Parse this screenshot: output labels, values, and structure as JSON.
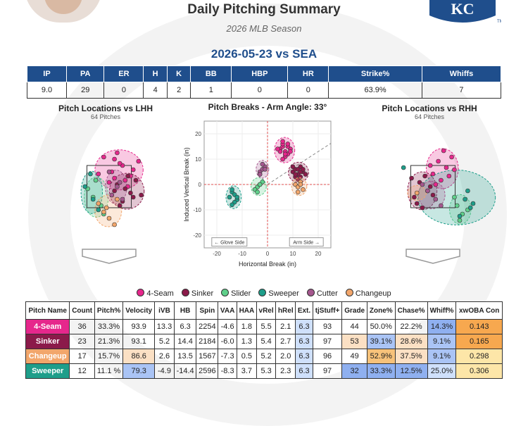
{
  "header": {
    "title": "Daily Pitching Summary",
    "subtitle": "2026 MLB Season",
    "game": "2026-05-23 vs SEA"
  },
  "summary": {
    "headers": [
      "IP",
      "PA",
      "ER",
      "H",
      "K",
      "BB",
      "HBP",
      "HR",
      "Strike%",
      "Whiffs"
    ],
    "values": [
      "9.0",
      "29",
      "0",
      "4",
      "2",
      "1",
      "0",
      "0",
      "63.9%",
      "7"
    ]
  },
  "lhh": {
    "title": "Pitch Locations vs LHH",
    "sub": "64 Pitches"
  },
  "rhh": {
    "title": "Pitch Locations vs RHH",
    "sub": "64 Pitches"
  },
  "colors": {
    "4-Seam": "#e6278c",
    "Sinker": "#8b1a4a",
    "Slider": "#5fd08a",
    "Sweeper": "#1e9e8a",
    "Cutter": "#a5578e",
    "Changeup": "#f2a66b"
  },
  "chart_data": [
    {
      "type": "scatter",
      "title": "Pitch Breaks - Arm Angle: 33°",
      "xlabel": "Horizontal Break (in)",
      "ylabel": "Induced Vertical Break (in)",
      "xlim": [
        -25,
        25
      ],
      "ylim": [
        -25,
        25
      ],
      "xticks": [
        -20,
        -10,
        0,
        10,
        20
      ],
      "yticks": [
        -20,
        -10,
        0,
        10,
        20
      ],
      "arm_angle_deg": 33,
      "annotations": [
        "← Glove Side",
        "Arm Side →"
      ],
      "series": [
        {
          "name": "4-Seam",
          "x": [
            5,
            6,
            7,
            8,
            9,
            6,
            7,
            8,
            5,
            6,
            7,
            9,
            8,
            4,
            6,
            7
          ],
          "y": [
            14,
            15,
            13,
            12,
            14,
            16,
            11,
            15,
            13,
            10,
            12,
            13,
            16,
            14,
            17,
            12
          ]
        },
        {
          "name": "Sinker",
          "x": [
            10,
            11,
            12,
            13,
            14,
            11,
            12,
            13,
            15,
            10,
            14,
            12,
            11,
            13
          ],
          "y": [
            5,
            6,
            4,
            7,
            5,
            3,
            6,
            5,
            4,
            7,
            6,
            2,
            4,
            3
          ]
        },
        {
          "name": "Slider",
          "x": [
            -4,
            -3,
            -2,
            -5,
            -4,
            -3
          ],
          "y": [
            -1,
            0,
            1,
            -2,
            -3,
            0
          ]
        },
        {
          "name": "Sweeper",
          "x": [
            -14,
            -13,
            -12,
            -15,
            -14,
            -13,
            -12,
            -14
          ],
          "y": [
            -3,
            -4,
            -6,
            -5,
            -2,
            -7,
            -5,
            -8
          ]
        },
        {
          "name": "Cutter",
          "x": [
            -3,
            -2,
            -1,
            -2,
            -1,
            -3
          ],
          "y": [
            5,
            6,
            7,
            8,
            6,
            4
          ]
        },
        {
          "name": "Changeup",
          "x": [
            11,
            12,
            13,
            14,
            12,
            13
          ],
          "y": [
            0,
            -1,
            1,
            -2,
            -3,
            0
          ]
        }
      ]
    },
    {
      "type": "scatter",
      "title": "Pitch Locations vs LHH",
      "subtitle": "64 Pitches",
      "series": [
        {
          "name": "4-Seam",
          "x": [
            0.2,
            0.5,
            0.1,
            0.8,
            -0.2,
            0.6,
            0.3,
            0.9,
            0.0,
            0.4,
            -0.4,
            0.7,
            1.1,
            0.2
          ],
          "y": [
            3.8,
            3.5,
            3.2,
            3.0,
            3.9,
            2.8,
            4.1,
            3.3,
            2.7,
            3.6,
            3.1,
            2.5,
            3.7,
            2.9
          ]
        },
        {
          "name": "Sinker",
          "x": [
            0.6,
            0.9,
            0.3,
            1.0,
            0.5,
            0.8,
            0.2,
            1.2,
            0.7,
            0.4
          ],
          "y": [
            2.4,
            2.0,
            2.6,
            2.8,
            1.8,
            2.2,
            2.3,
            2.1,
            3.0,
            1.6
          ]
        },
        {
          "name": "Slider",
          "x": [
            -0.6,
            -0.3,
            -0.8,
            -0.2,
            -0.5
          ],
          "y": [
            2.0,
            1.6,
            2.4,
            1.2,
            2.8
          ]
        },
        {
          "name": "Sweeper",
          "x": [
            -0.9,
            -0.6,
            -0.4,
            -0.7
          ],
          "y": [
            2.5,
            1.9,
            1.4,
            3.1
          ]
        },
        {
          "name": "Cutter",
          "x": [
            0.1,
            0.3,
            0.5,
            0.0,
            0.4
          ],
          "y": [
            2.1,
            2.5,
            1.9,
            3.2,
            2.7
          ]
        },
        {
          "name": "Changeup",
          "x": [
            -0.2,
            0.0,
            -0.4,
            0.2,
            -0.1,
            0.3
          ],
          "y": [
            1.3,
            1.0,
            1.7,
            0.7,
            1.5,
            1.9
          ]
        }
      ]
    },
    {
      "type": "scatter",
      "title": "Pitch Locations vs RHH",
      "subtitle": "64 Pitches",
      "series": [
        {
          "name": "4-Seam",
          "x": [
            0.2,
            0.5,
            0.0,
            0.7,
            0.3,
            -0.1,
            0.6,
            0.4,
            0.1,
            0.8
          ],
          "y": [
            3.7,
            3.4,
            3.1,
            3.9,
            2.8,
            3.5,
            3.0,
            4.2,
            2.6,
            3.3
          ]
        },
        {
          "name": "Sinker",
          "x": [
            -0.5,
            -0.2,
            -0.7,
            -0.3,
            -0.6,
            -0.1,
            -0.4,
            -0.8,
            0.0
          ],
          "y": [
            2.7,
            2.3,
            2.0,
            3.0,
            1.7,
            2.5,
            1.5,
            2.9,
            2.1
          ]
        },
        {
          "name": "Slider",
          "x": [
            0.9,
            1.1,
            0.8,
            1.3,
            1.0
          ],
          "y": [
            1.6,
            1.2,
            2.0,
            1.4,
            0.9
          ]
        },
        {
          "name": "Sweeper",
          "x": [
            1.2,
            1.4,
            1.0,
            1.3,
            -1.1,
            1.5
          ],
          "y": [
            1.9,
            1.5,
            1.1,
            2.3,
            3.4,
            1.7
          ]
        },
        {
          "name": "Cutter",
          "x": [
            -0.2,
            0.1,
            -0.4,
            0.3
          ],
          "y": [
            2.3,
            1.9,
            2.6,
            1.6
          ]
        },
        {
          "name": "Changeup",
          "x": [
            -0.6
          ],
          "y": [
            2.2
          ]
        }
      ]
    }
  ],
  "pitch_table": {
    "headers": [
      "Pitch Name",
      "Count",
      "Pitch%",
      "Velocity",
      "iVB",
      "HB",
      "Spin",
      "VAA",
      "HAA",
      "vRel",
      "hRel",
      "Ext.",
      "tjStuff+",
      "Grade",
      "Zone%",
      "Chase%",
      "Whiff%",
      "xwOBA Con"
    ],
    "rows": [
      {
        "name": "4-Seam",
        "color": "#e6278c",
        "cells": [
          "36",
          "33.3%",
          "93.9",
          "13.3",
          "6.3",
          "2254",
          "-4.6",
          "1.8",
          "5.5",
          "2.1",
          "6.3",
          "93",
          "44",
          "50.0%",
          "22.2%",
          "14.3%",
          "0.143"
        ],
        "bg": [
          "",
          "",
          "",
          "",
          "",
          "",
          "",
          "",
          "",
          "",
          "#cfe0fb",
          "",
          "",
          "",
          "",
          "#8fb0f0",
          "#f7a84f"
        ]
      },
      {
        "name": "Sinker",
        "color": "#8b1a4a",
        "cells": [
          "23",
          "21.3%",
          "93.1",
          "5.2",
          "14.4",
          "2184",
          "-6.0",
          "1.3",
          "5.4",
          "2.7",
          "6.3",
          "97",
          "53",
          "39.1%",
          "28.6%",
          "9.1%",
          "0.165"
        ],
        "bg": [
          "",
          "",
          "",
          "",
          "",
          "",
          "",
          "",
          "",
          "",
          "#cfe0fb",
          "",
          "#fbe0c4",
          "#aac4f5",
          "#fbe0c4",
          "#aac4f5",
          "#f7a84f"
        ]
      },
      {
        "name": "Changeup",
        "color": "#f2a66b",
        "cells": [
          "17",
          "15.7%",
          "86.6",
          "2.6",
          "13.5",
          "1567",
          "-7.3",
          "0.5",
          "5.2",
          "2.0",
          "6.3",
          "96",
          "49",
          "52.9%",
          "37.5%",
          "9.1%",
          "0.298"
        ],
        "bg": [
          "",
          "",
          "#fbe0c4",
          "",
          "",
          "",
          "",
          "",
          "",
          "",
          "#cfe0fb",
          "",
          "",
          "#f7c27a",
          "#fbe0c4",
          "#aac4f5",
          "#fde6a8"
        ]
      },
      {
        "name": "Sweeper",
        "color": "#1e9e8a",
        "cells": [
          "12",
          "11.1 %",
          "79.3",
          "-4.9",
          "-14.4",
          "2596",
          "-8.3",
          "3.7",
          "5.3",
          "2.3",
          "6.3",
          "97",
          "32",
          "33.3%",
          "12.5%",
          "25.0%",
          "0.306"
        ],
        "bg": [
          "",
          "",
          "#aac4f5",
          "",
          "",
          "",
          "",
          "",
          "",
          "",
          "#cfe0fb",
          "",
          "#8fb0f0",
          "#8fb0f0",
          "#8fb0f0",
          "#cfe0fb",
          "#fde6a8"
        ]
      }
    ]
  }
}
